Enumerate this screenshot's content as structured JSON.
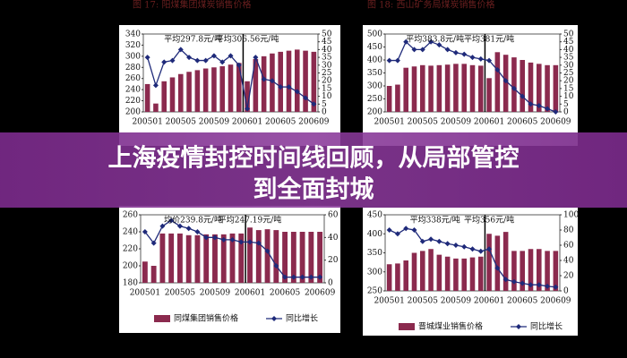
{
  "banner": {
    "lines": [
      "上海疫情封控时间线回顾，从局部管控",
      "到全面封城"
    ]
  },
  "captions": [
    "图 17:  阳煤集团煤炭销售价格",
    "图 18:  西山矿务局煤炭销售价格"
  ],
  "chart_data": [
    {
      "type": "bar_line",
      "categories": [
        "200501",
        null,
        null,
        null,
        "200505",
        null,
        null,
        null,
        "200509",
        null,
        null,
        null,
        "200601",
        null,
        null,
        null,
        "200605",
        null,
        null,
        null,
        "200609"
      ],
      "annotations": [
        "平均297.8元/吨",
        "平均306.56元/吨"
      ],
      "ylim": [
        200,
        340
      ],
      "yticks": [
        200,
        220,
        240,
        260,
        280,
        300,
        320,
        340
      ],
      "y2lim": [
        0,
        50
      ],
      "y2ticks": [
        0,
        5,
        10,
        15,
        20,
        25,
        30,
        35,
        40,
        45,
        50
      ],
      "series": [
        {
          "color": "#8b2a4e",
          "values": [
            250,
            215,
            255,
            262,
            268,
            272,
            275,
            278,
            280,
            282,
            285,
            288,
            255,
            295,
            300,
            305,
            308,
            310,
            312,
            310,
            308
          ]
        },
        {
          "color": "#1f2a7a",
          "axis": "y2",
          "values": [
            35,
            17,
            32,
            33,
            40,
            35,
            33,
            33,
            36,
            32,
            36,
            30,
            2,
            35,
            21,
            20,
            16,
            16,
            13,
            9,
            5
          ]
        }
      ]
    },
    {
      "type": "bar_line",
      "categories": [
        "200501",
        null,
        null,
        null,
        "200505",
        null,
        null,
        null,
        "200509",
        null,
        null,
        null,
        "200601",
        null,
        null,
        null,
        "200605",
        null,
        null,
        null,
        "200609"
      ],
      "annotations": [
        "平均383.8元/吨",
        "平均381元/吨"
      ],
      "ylim": [
        200,
        500
      ],
      "yticks": [
        200,
        250,
        300,
        350,
        400,
        450,
        500
      ],
      "y2lim": [
        0,
        50
      ],
      "y2ticks": [
        0,
        5,
        10,
        15,
        20,
        25,
        30,
        35,
        40,
        45,
        50
      ],
      "series": [
        {
          "color": "#8b2a4e",
          "values": [
            300,
            305,
            370,
            375,
            380,
            378,
            380,
            382,
            385,
            385,
            380,
            378,
            330,
            430,
            420,
            410,
            400,
            390,
            385,
            380,
            380
          ]
        },
        {
          "color": "#1f2a7a",
          "axis": "y2",
          "values": [
            33,
            33,
            45,
            40,
            40,
            45,
            43,
            40,
            38,
            37,
            35,
            34,
            33,
            27,
            20,
            15,
            10,
            5,
            4,
            2,
            0
          ]
        }
      ]
    },
    {
      "type": "bar_line",
      "categories": [
        "200501",
        null,
        null,
        null,
        "200505",
        null,
        null,
        null,
        "200509",
        null,
        null,
        null,
        "200601",
        null,
        null,
        null,
        "200605",
        null,
        null,
        null,
        "200609"
      ],
      "annotations": [
        "均价239.8元/吨",
        "平均247.19元/吨"
      ],
      "ylim": [
        180,
        260
      ],
      "yticks": [
        180,
        200,
        220,
        240,
        260
      ],
      "y2lim": [
        0,
        60
      ],
      "y2ticks": [
        0,
        20,
        40,
        60
      ],
      "series": [
        {
          "name": "同煤集团销售价格",
          "color": "#8b2a4e",
          "values": [
            205,
            200,
            238,
            238,
            238,
            236,
            236,
            237,
            237,
            237,
            238,
            238,
            245,
            242,
            243,
            242,
            240,
            240,
            240,
            240,
            240
          ]
        },
        {
          "name": "同比增长",
          "color": "#1f2a7a",
          "axis": "y2",
          "values": [
            45,
            35,
            50,
            55,
            50,
            48,
            45,
            40,
            40,
            38,
            38,
            36,
            36,
            35,
            28,
            15,
            5,
            5,
            5,
            5,
            5
          ]
        }
      ]
    },
    {
      "type": "bar_line",
      "categories": [
        "200501",
        null,
        null,
        null,
        "200505",
        null,
        null,
        null,
        "200509",
        null,
        null,
        null,
        "200601",
        null,
        null,
        null,
        "200605",
        null,
        null,
        null,
        "200609"
      ],
      "annotations": [
        "平均338元/吨",
        "平均356元/吨"
      ],
      "ylim": [
        250,
        450
      ],
      "yticks": [
        250,
        300,
        350,
        400,
        450
      ],
      "y2lim": [
        0,
        100
      ],
      "y2ticks": [
        0,
        20,
        40,
        60,
        80,
        100
      ],
      "series": [
        {
          "name": "晋城煤业销售价格",
          "color": "#8b2a4e",
          "values": [
            320,
            322,
            330,
            350,
            355,
            360,
            345,
            340,
            335,
            335,
            338,
            340,
            400,
            395,
            405,
            355,
            355,
            360,
            360,
            355,
            355
          ]
        },
        {
          "name": "同比增长",
          "color": "#1f2a7a",
          "axis": "y2",
          "values": [
            80,
            75,
            82,
            80,
            65,
            68,
            65,
            62,
            60,
            58,
            55,
            52,
            55,
            30,
            15,
            12,
            10,
            8,
            8,
            6,
            5
          ]
        }
      ]
    }
  ]
}
